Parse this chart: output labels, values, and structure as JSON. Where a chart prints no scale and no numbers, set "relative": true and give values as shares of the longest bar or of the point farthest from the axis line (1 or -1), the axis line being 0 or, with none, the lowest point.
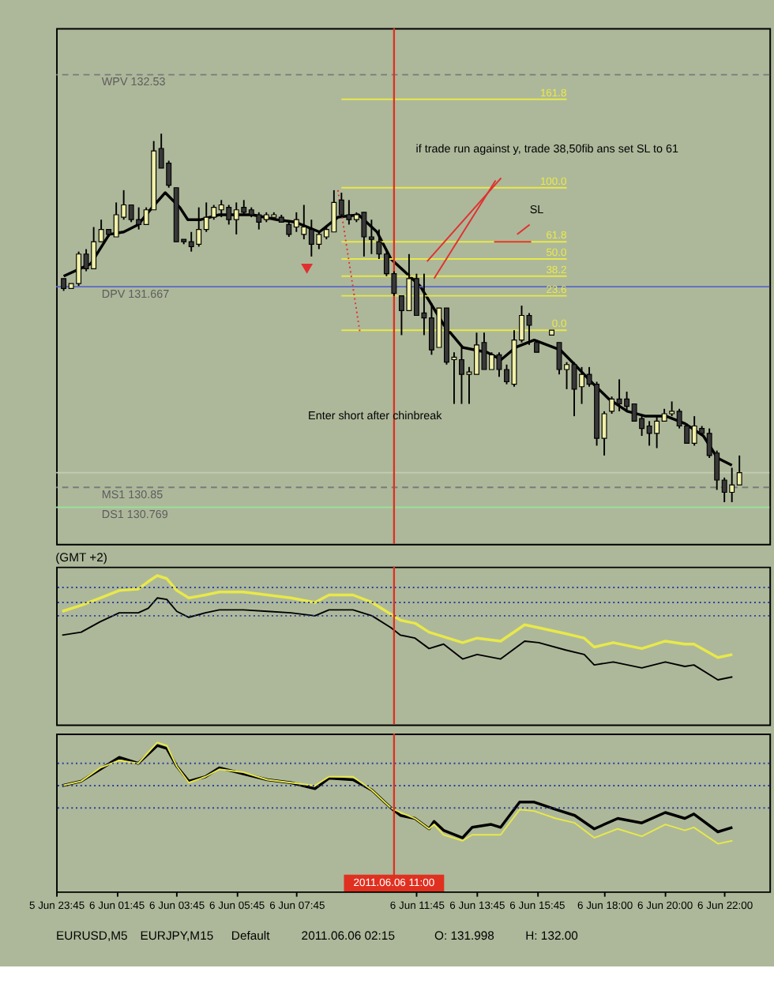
{
  "chart_data": [
    {
      "type": "candlestick",
      "xlim": [
        "2011-06-05T23:45",
        "2011-06-06T23:30"
      ],
      "ylim": [
        130.62,
        132.72
      ],
      "tick_labels": false,
      "grid": false,
      "x": [
        "2011-06-06T00:00",
        "2011-06-06T00:15",
        "2011-06-06T00:30",
        "2011-06-06T00:45",
        "2011-06-06T01:00",
        "2011-06-06T01:15",
        "2011-06-06T01:30",
        "2011-06-06T01:45",
        "2011-06-06T02:00",
        "2011-06-06T02:15",
        "2011-06-06T02:30",
        "2011-06-06T02:45",
        "2011-06-06T03:00",
        "2011-06-06T03:15",
        "2011-06-06T03:30",
        "2011-06-06T03:45",
        "2011-06-06T04:00",
        "2011-06-06T04:15",
        "2011-06-06T04:30",
        "2011-06-06T04:45",
        "2011-06-06T05:00",
        "2011-06-06T05:15",
        "2011-06-06T05:30",
        "2011-06-06T05:45",
        "2011-06-06T06:00",
        "2011-06-06T06:15",
        "2011-06-06T06:30",
        "2011-06-06T06:45",
        "2011-06-06T07:00",
        "2011-06-06T07:15",
        "2011-06-06T07:30",
        "2011-06-06T07:45",
        "2011-06-06T08:00",
        "2011-06-06T08:15",
        "2011-06-06T08:30",
        "2011-06-06T08:45",
        "2011-06-06T09:00",
        "2011-06-06T09:15",
        "2011-06-06T09:30",
        "2011-06-06T09:45",
        "2011-06-06T10:00",
        "2011-06-06T10:15",
        "2011-06-06T10:30",
        "2011-06-06T10:45",
        "2011-06-06T11:00",
        "2011-06-06T11:15",
        "2011-06-06T11:30",
        "2011-06-06T11:45",
        "2011-06-06T12:00",
        "2011-06-06T12:15",
        "2011-06-06T12:30",
        "2011-06-06T12:45",
        "2011-06-06T13:00",
        "2011-06-06T13:15",
        "2011-06-06T13:30",
        "2011-06-06T13:45",
        "2011-06-06T14:00",
        "2011-06-06T14:15",
        "2011-06-06T14:30",
        "2011-06-06T14:45",
        "2011-06-06T15:00",
        "2011-06-06T15:15",
        "2011-06-06T15:30",
        "2011-06-06T15:45",
        "2011-06-06T16:15",
        "2011-06-06T16:30",
        "2011-06-06T16:45",
        "2011-06-06T17:00",
        "2011-06-06T17:15",
        "2011-06-06T17:30",
        "2011-06-06T17:45",
        "2011-06-06T18:00",
        "2011-06-06T18:15",
        "2011-06-06T18:30",
        "2011-06-06T18:45",
        "2011-06-06T19:00",
        "2011-06-06T19:15",
        "2011-06-06T19:30",
        "2011-06-06T19:45",
        "2011-06-06T20:00",
        "2011-06-06T20:15",
        "2011-06-06T20:30",
        "2011-06-06T20:45",
        "2011-06-06T21:00",
        "2011-06-06T21:15",
        "2011-06-06T21:30",
        "2011-06-06T21:45",
        "2011-06-06T22:00",
        "2011-06-06T22:15",
        "2011-06-06T22:30"
      ],
      "ohlc": [
        [
          131.7,
          131.7,
          131.65,
          131.66
        ],
        [
          131.66,
          131.68,
          131.66,
          131.68
        ],
        [
          131.68,
          131.81,
          131.67,
          131.8
        ],
        [
          131.8,
          131.82,
          131.73,
          131.74
        ],
        [
          131.74,
          131.91,
          131.74,
          131.85
        ],
        [
          131.85,
          131.94,
          131.85,
          131.9
        ],
        [
          131.9,
          131.9,
          131.87,
          131.88
        ],
        [
          131.87,
          132.01,
          131.87,
          131.96
        ],
        [
          131.95,
          132.06,
          131.94,
          132.0
        ],
        [
          132.0,
          132.0,
          131.93,
          131.94
        ],
        [
          131.94,
          131.99,
          131.9,
          131.92
        ],
        [
          131.92,
          131.99,
          131.92,
          131.98
        ],
        [
          131.98,
          132.26,
          131.98,
          132.22
        ],
        [
          132.23,
          132.29,
          132.15,
          132.15
        ],
        [
          132.17,
          132.18,
          132.07,
          132.08
        ],
        [
          132.07,
          132.07,
          131.85,
          131.85
        ],
        [
          131.86,
          131.86,
          131.84,
          131.85
        ],
        [
          131.85,
          131.89,
          131.81,
          131.83
        ],
        [
          131.84,
          131.99,
          131.83,
          131.9
        ],
        [
          131.9,
          132.01,
          131.89,
          131.95
        ],
        [
          131.95,
          132.0,
          131.94,
          131.99
        ],
        [
          131.98,
          132.02,
          131.95,
          132.0
        ],
        [
          131.99,
          132.0,
          131.92,
          131.94
        ],
        [
          131.94,
          132.01,
          131.88,
          131.98
        ],
        [
          131.99,
          132.02,
          131.96,
          131.97
        ],
        [
          131.98,
          131.99,
          131.95,
          131.96
        ],
        [
          131.96,
          131.97,
          131.9,
          131.93
        ],
        [
          131.94,
          131.97,
          131.93,
          131.96
        ],
        [
          131.95,
          131.97,
          131.95,
          131.96
        ],
        [
          131.95,
          131.96,
          131.93,
          131.93
        ],
        [
          131.92,
          131.93,
          131.87,
          131.88
        ],
        [
          131.91,
          131.97,
          131.89,
          131.94
        ],
        [
          131.88,
          132.0,
          131.86,
          131.91
        ],
        [
          131.9,
          131.94,
          131.79,
          131.84
        ],
        [
          131.84,
          131.89,
          131.82,
          131.88
        ],
        [
          131.87,
          131.91,
          131.86,
          131.9
        ],
        [
          131.89,
          132.06,
          131.89,
          132.01
        ],
        [
          132.02,
          132.05,
          131.95,
          131.96
        ],
        [
          131.96,
          132.02,
          131.92,
          131.94
        ],
        [
          131.94,
          131.97,
          131.93,
          131.96
        ],
        [
          131.97,
          131.97,
          131.79,
          131.87
        ],
        [
          131.87,
          131.94,
          131.8,
          131.86
        ],
        [
          131.85,
          131.9,
          131.78,
          131.8
        ],
        [
          131.8,
          131.81,
          131.71,
          131.72
        ],
        [
          131.72,
          131.73,
          131.63,
          131.64
        ],
        [
          131.63,
          131.63,
          131.47,
          131.57
        ],
        [
          131.57,
          131.8,
          131.57,
          131.7
        ],
        [
          131.7,
          131.72,
          131.55,
          131.55
        ],
        [
          131.56,
          131.72,
          131.47,
          131.54
        ],
        [
          131.54,
          131.6,
          131.39,
          131.41
        ],
        [
          131.42,
          131.58,
          131.42,
          131.58
        ],
        [
          131.58,
          131.58,
          131.35,
          131.36
        ],
        [
          131.37,
          131.4,
          131.19,
          131.38
        ],
        [
          131.37,
          131.42,
          131.19,
          131.31
        ],
        [
          131.31,
          131.34,
          131.19,
          131.32
        ],
        [
          131.31,
          131.48,
          131.31,
          131.43
        ],
        [
          131.44,
          131.48,
          131.33,
          131.33
        ],
        [
          131.33,
          131.4,
          131.33,
          131.39
        ],
        [
          131.39,
          131.4,
          131.3,
          131.33
        ],
        [
          131.33,
          131.35,
          131.27,
          131.28
        ],
        [
          131.27,
          131.49,
          131.26,
          131.45
        ],
        [
          131.45,
          131.59,
          131.44,
          131.55
        ],
        [
          131.55,
          131.56,
          131.43,
          131.51
        ],
        [
          131.44,
          131.45,
          131.4,
          131.4
        ],
        [
          131.47,
          131.49,
          131.47,
          131.49
        ],
        [
          131.44,
          131.44,
          131.31,
          131.33
        ],
        [
          131.33,
          131.36,
          131.25,
          131.35
        ],
        [
          131.35,
          131.36,
          131.14,
          131.25
        ],
        [
          131.26,
          131.34,
          131.19,
          131.31
        ],
        [
          131.31,
          131.34,
          131.26,
          131.27
        ],
        [
          131.27,
          131.28,
          131.02,
          131.05
        ],
        [
          131.05,
          131.16,
          130.98,
          131.15
        ],
        [
          131.16,
          131.22,
          131.15,
          131.21
        ],
        [
          131.21,
          131.29,
          131.16,
          131.19
        ],
        [
          131.21,
          131.24,
          131.16,
          131.18
        ],
        [
          131.19,
          131.19,
          131.12,
          131.12
        ],
        [
          131.13,
          131.14,
          131.06,
          131.09
        ],
        [
          131.1,
          131.12,
          131.02,
          131.07
        ],
        [
          131.07,
          131.14,
          131.01,
          131.12
        ],
        [
          131.12,
          131.17,
          131.12,
          131.15
        ],
        [
          131.15,
          131.2,
          131.14,
          131.16
        ],
        [
          131.16,
          131.17,
          131.09,
          131.1
        ],
        [
          131.1,
          131.11,
          131.03,
          131.03
        ],
        [
          131.03,
          131.14,
          131.02,
          131.1
        ],
        [
          131.09,
          131.1,
          131.06,
          131.07
        ],
        [
          131.07,
          131.09,
          130.97,
          130.98
        ],
        [
          130.99,
          131.0,
          130.84,
          130.88
        ],
        [
          130.88,
          130.89,
          130.79,
          130.83
        ],
        [
          130.83,
          130.93,
          130.79,
          130.86
        ],
        [
          130.86,
          130.98,
          130.86,
          130.91
        ]
      ],
      "colors": [
        "#383838",
        "#f0f0a8",
        "#f0f0a8",
        "#383838",
        "#f0f0a8",
        "#f0f0a8",
        "#383838",
        "#f0f0a8",
        "#f0f0a8",
        "#383838",
        "#383838",
        "#f0f0a8",
        "#f0f0a8",
        "#383838",
        "#383838",
        "#383838",
        "#383838",
        "#383838",
        "#f0f0a8",
        "#f0f0a8",
        "#f0f0a8",
        "#f0f0a8",
        "#383838",
        "#f0f0a8",
        "#383838",
        "#383838",
        "#383838",
        "#f0f0a8",
        "#f0f0a8",
        "#383838",
        "#383838",
        "#f0f0a8",
        "#f0f0a8",
        "#383838",
        "#f0f0a8",
        "#f0f0a8",
        "#f0f0a8",
        "#383838",
        "#383838",
        "#f0f0a8",
        "#383838",
        "#383838",
        "#383838",
        "#383838",
        "#383838",
        "#383838",
        "#f0f0a8",
        "#383838",
        "#383838",
        "#383838",
        "#f0f0a8",
        "#383838",
        "#f0f0a8",
        "#383838",
        "#f0f0a8",
        "#f0f0a8",
        "#383838",
        "#f0f0a8",
        "#383838",
        "#383838",
        "#f0f0a8",
        "#f0f0a8",
        "#383838",
        "#383838",
        "#f0f0a8",
        "#383838",
        "#f0f0a8",
        "#383838",
        "#f0f0a8",
        "#383838",
        "#383838",
        "#f0f0a8",
        "#f0f0a8",
        "#383838",
        "#383838",
        "#383838",
        "#383838",
        "#383838",
        "#f0f0a8",
        "#f0f0a8",
        "#f0f0a8",
        "#383838",
        "#383838",
        "#f0f0a8",
        "#383838",
        "#383838",
        "#383838",
        "#383838",
        "#f0f0a8",
        "#f0f0a8"
      ],
      "series": [
        {
          "type": "line",
          "color": "#000000",
          "x": [
            "2011-06-06T00:00",
            "2011-06-06T00:54",
            "2011-06-06T01:31",
            "2011-06-06T02:00",
            "2011-06-06T02:29",
            "2011-06-06T02:57",
            "2011-06-06T03:23",
            "2011-06-06T03:52",
            "2011-06-06T04:08",
            "2011-06-06T04:34",
            "2011-06-06T05:11",
            "2011-06-06T06:17",
            "2011-06-06T07:06",
            "2011-06-06T07:43",
            "2011-06-06T08:31",
            "2011-06-06T09:08",
            "2011-06-06T09:49",
            "2011-06-06T10:26",
            "2011-06-06T10:54",
            "2011-06-06T11:52",
            "2011-06-06T12:40",
            "2011-06-06T13:17",
            "2011-06-06T14:06",
            "2011-06-06T14:34",
            "2011-06-06T15:03",
            "2011-06-06T15:40",
            "2011-06-06T16:32",
            "2011-06-06T17:01",
            "2011-06-06T17:29",
            "2011-06-06T18:09",
            "2011-06-06T18:46",
            "2011-06-06T19:23",
            "2011-06-06T20:04",
            "2011-06-06T20:41",
            "2011-06-06T21:18",
            "2011-06-06T21:46",
            "2011-06-06T22:15"
          ],
          "values": [
            131.71,
            131.76,
            131.88,
            131.89,
            131.92,
            131.99,
            132.05,
            131.99,
            131.94,
            131.94,
            131.96,
            131.96,
            131.94,
            131.93,
            131.89,
            131.95,
            131.96,
            131.89,
            131.78,
            131.67,
            131.51,
            131.42,
            131.4,
            131.37,
            131.42,
            131.45,
            131.41,
            131.35,
            131.29,
            131.21,
            131.16,
            131.14,
            131.14,
            131.11,
            131.06,
            130.97,
            130.94
          ]
        },
        {
          "type": "line",
          "color": "#e8e84a",
          "x": [
            "2011-06-06T09:15",
            "2011-06-06T16:45"
          ],
          "values": [
            132.43,
            132.43
          ]
        },
        {
          "type": "line",
          "color": "#e8e84a",
          "x": [
            "2011-06-06T09:15",
            "2011-06-06T16:45"
          ],
          "values": [
            132.07,
            132.07
          ]
        },
        {
          "type": "line",
          "color": "#e8e84a",
          "x": [
            "2011-06-06T09:15",
            "2011-06-06T16:45"
          ],
          "values": [
            131.85,
            131.85
          ]
        },
        {
          "type": "line",
          "color": "#e8e84a",
          "x": [
            "2011-06-06T09:15",
            "2011-06-06T16:45"
          ],
          "values": [
            131.78,
            131.78
          ]
        },
        {
          "type": "line",
          "color": "#e8e84a",
          "x": [
            "2011-06-06T09:15",
            "2011-06-06T16:45"
          ],
          "values": [
            131.71,
            131.71
          ]
        },
        {
          "type": "line",
          "color": "#e8e84a",
          "x": [
            "2011-06-06T09:15",
            "2011-06-06T16:45"
          ],
          "values": [
            131.63,
            131.63
          ]
        },
        {
          "type": "line",
          "color": "#e8e84a",
          "x": [
            "2011-06-06T09:15",
            "2011-06-06T16:45"
          ],
          "values": [
            131.49,
            131.49
          ]
        },
        {
          "type": "line",
          "color": "#e03030",
          "line_style": "dotted",
          "x": [
            "2011-06-06T09:08",
            "2011-06-06T09:52"
          ],
          "values": [
            132.06,
            131.48
          ]
        },
        {
          "type": "line",
          "color": "#e03030",
          "x": [
            "2011-06-06T14:20",
            "2011-06-06T15:34"
          ],
          "values": [
            131.85,
            131.85
          ]
        },
        {
          "type": "line",
          "color": "#e03030",
          "x": [
            "2011-06-06T12:06",
            "2011-06-06T14:34"
          ],
          "values": [
            131.77,
            132.11
          ]
        },
        {
          "type": "line",
          "color": "#e03030",
          "x": [
            "2011-06-06T12:20",
            "2011-06-06T14:23"
          ],
          "values": [
            131.7,
            132.1
          ]
        },
        {
          "type": "line",
          "color": "#e03030",
          "x": [
            "2011-06-06T15:06",
            "2011-06-06T15:31"
          ],
          "values": [
            131.88,
            131.92
          ]
        },
        {
          "type": "scatter",
          "color": "#e03030",
          "marker": "triangle",
          "x": [
            "2011-06-06T08:06"
          ],
          "values": [
            131.74
          ]
        }
      ],
      "ref_lines": [
        {
          "axis": "y",
          "value": 132.53,
          "label": "WPV  132.53",
          "color": "#7a7a7a",
          "line_style": "dashed"
        },
        {
          "axis": "y",
          "value": 131.667,
          "label": "DPV  131.667",
          "color": "#5a68c8",
          "line_style": "solid"
        },
        {
          "axis": "y",
          "value": 130.91,
          "color": "#c4ccb4",
          "line_style": "solid"
        },
        {
          "axis": "y",
          "value": 130.85,
          "label": "MS1  130.85",
          "color": "#7a7a7a",
          "line_style": "dashed"
        },
        {
          "axis": "y",
          "value": 130.769,
          "label": "DS1  130.769",
          "color": "#98e098",
          "line_style": "solid"
        },
        {
          "axis": "x",
          "value": "2011-06-06T11:00",
          "color": "#e03020",
          "line_style": "solid"
        }
      ],
      "annotations": [
        {
          "text": "161.8",
          "x": "2011-06-06T16:45",
          "y": 132.43
        },
        {
          "text": "100.0",
          "x": "2011-06-06T16:45",
          "y": 132.07
        },
        {
          "text": "61.8",
          "x": "2011-06-06T16:45",
          "y": 131.85
        },
        {
          "text": "50.0",
          "x": "2011-06-06T16:45",
          "y": 131.78
        },
        {
          "text": "38.2",
          "x": "2011-06-06T16:45",
          "y": 131.71
        },
        {
          "text": "23.6",
          "x": "2011-06-06T16:45",
          "y": 131.63
        },
        {
          "text": "0.0",
          "x": "2011-06-06T16:45",
          "y": 131.49
        },
        "if trade run against y, trade 38,50fib ans set SL to 61",
        "SL",
        "Enter short after chinbreak"
      ]
    },
    {
      "type": "line",
      "title": "(GMT +2)",
      "relative": true,
      "xlim": [
        "2011-06-05T23:45",
        "2011-06-06T23:30"
      ],
      "tick_labels": false,
      "grid": false,
      "series": [
        {
          "color": "#e8e84a",
          "x": [
            "2011-06-05T23:57",
            "2011-06-06T00:35",
            "2011-06-06T01:13",
            "2011-06-06T01:51",
            "2011-06-06T02:29",
            "2011-06-06T02:49",
            "2011-06-06T03:07",
            "2011-06-06T03:26",
            "2011-06-06T03:46",
            "2011-06-06T04:10",
            "2011-06-06T04:43",
            "2011-06-06T05:11",
            "2011-06-06T05:59",
            "2011-06-06T06:47",
            "2011-06-06T07:34",
            "2011-06-06T08:22",
            "2011-06-06T08:50",
            "2011-06-06T09:38",
            "2011-06-06T10:16",
            "2011-06-06T10:54",
            "2011-06-06T11:13",
            "2011-06-06T11:42",
            "2011-06-06T12:10",
            "2011-06-06T12:39",
            "2011-06-06T13:17",
            "2011-06-06T13:46",
            "2011-06-06T14:33",
            "2011-06-06T15:21",
            "2011-06-06T15:49",
            "2011-06-06T16:43",
            "2011-06-06T17:20",
            "2011-06-06T17:40",
            "2011-06-06T18:18",
            "2011-06-06T19:15",
            "2011-06-06T20:02",
            "2011-06-06T20:41",
            "2011-06-06T20:59",
            "2011-06-06T21:47",
            "2011-06-06T22:16"
          ],
          "values": [
            0.76,
            0.8,
            0.85,
            0.9,
            0.91,
            0.96,
            1.0,
            0.98,
            0.9,
            0.85,
            0.87,
            0.89,
            0.89,
            0.87,
            0.85,
            0.82,
            0.87,
            0.87,
            0.82,
            0.74,
            0.7,
            0.68,
            0.62,
            0.59,
            0.55,
            0.58,
            0.56,
            0.67,
            0.65,
            0.61,
            0.58,
            0.52,
            0.55,
            0.51,
            0.56,
            0.54,
            0.54,
            0.45,
            0.47
          ]
        },
        {
          "color": "#000000",
          "x": [
            "2011-06-05T23:57",
            "2011-06-06T00:35",
            "2011-06-06T01:13",
            "2011-06-06T01:51",
            "2011-06-06T02:29",
            "2011-06-06T02:49",
            "2011-06-06T03:07",
            "2011-06-06T03:26",
            "2011-06-06T03:46",
            "2011-06-06T04:10",
            "2011-06-06T04:43",
            "2011-06-06T05:11",
            "2011-06-06T05:59",
            "2011-06-06T06:47",
            "2011-06-06T07:34",
            "2011-06-06T08:22",
            "2011-06-06T08:50",
            "2011-06-06T09:38",
            "2011-06-06T10:16",
            "2011-06-06T10:54",
            "2011-06-06T11:13",
            "2011-06-06T11:42",
            "2011-06-06T12:10",
            "2011-06-06T12:39",
            "2011-06-06T13:17",
            "2011-06-06T13:46",
            "2011-06-06T14:33",
            "2011-06-06T15:21",
            "2011-06-06T15:49",
            "2011-06-06T16:43",
            "2011-06-06T17:20",
            "2011-06-06T17:40",
            "2011-06-06T18:18",
            "2011-06-06T19:15",
            "2011-06-06T20:02",
            "2011-06-06T20:41",
            "2011-06-06T20:59",
            "2011-06-06T21:47",
            "2011-06-06T22:16"
          ],
          "values": [
            0.6,
            0.62,
            0.69,
            0.75,
            0.75,
            0.78,
            0.85,
            0.84,
            0.76,
            0.72,
            0.75,
            0.77,
            0.77,
            0.76,
            0.75,
            0.73,
            0.77,
            0.77,
            0.73,
            0.65,
            0.6,
            0.58,
            0.51,
            0.54,
            0.44,
            0.47,
            0.44,
            0.56,
            0.55,
            0.5,
            0.47,
            0.4,
            0.42,
            0.38,
            0.42,
            0.39,
            0.4,
            0.3,
            0.32
          ]
        }
      ],
      "ref_lines": [
        {
          "axis": "y",
          "value": 0.92,
          "color": "#2a3aa0",
          "line_style": "dotted"
        },
        {
          "axis": "y",
          "value": 0.82,
          "color": "#2a3aa0",
          "line_style": "dotted"
        },
        {
          "axis": "y",
          "value": 0.73,
          "color": "#2a3aa0",
          "line_style": "dotted"
        },
        {
          "axis": "x",
          "value": "2011-06-06T11:00",
          "color": "#e03020",
          "line_style": "solid"
        }
      ]
    },
    {
      "type": "line",
      "relative": true,
      "xlim": [
        "2011-06-05T23:45",
        "2011-06-06T23:30"
      ],
      "tick_labels": "x",
      "grid": false,
      "xticks": [
        {
          "value": "2011-06-05T23:45",
          "label": "5 Jun 23:45"
        },
        {
          "value": "2011-06-06T01:45",
          "label": "6 Jun 01:45"
        },
        {
          "value": "2011-06-06T03:45",
          "label": "6 Jun 03:45"
        },
        {
          "value": "2011-06-06T05:45",
          "label": "6 Jun 05:45"
        },
        {
          "value": "2011-06-06T07:45",
          "label": "6 Jun 07:45"
        },
        {
          "value": "2011-06-06T11:45",
          "label": "6 Jun 11:45"
        },
        {
          "value": "2011-06-06T13:45",
          "label": "6 Jun 13:45"
        },
        {
          "value": "2011-06-06T15:45",
          "label": "6 Jun 15:45"
        },
        {
          "value": "2011-06-06T18:00",
          "label": "6 Jun 18:00"
        },
        {
          "value": "2011-06-06T20:00",
          "label": "6 Jun 20:00"
        },
        {
          "value": "2011-06-06T22:00",
          "label": "6 Jun 22:00"
        }
      ],
      "series": [
        {
          "color": "#000000",
          "x": [
            "2011-06-05T23:57",
            "2011-06-06T00:35",
            "2011-06-06T01:13",
            "2011-06-06T01:51",
            "2011-06-06T02:29",
            "2011-06-06T03:07",
            "2011-06-06T03:26",
            "2011-06-06T03:46",
            "2011-06-06T04:10",
            "2011-06-06T04:43",
            "2011-06-06T05:11",
            "2011-06-06T05:59",
            "2011-06-06T06:47",
            "2011-06-06T07:34",
            "2011-06-06T08:22",
            "2011-06-06T08:50",
            "2011-06-06T09:38",
            "2011-06-06T10:16",
            "2011-06-06T10:54",
            "2011-06-06T11:13",
            "2011-06-06T11:42",
            "2011-06-06T12:10",
            "2011-06-06T12:20",
            "2011-06-06T12:39",
            "2011-06-06T13:17",
            "2011-06-06T13:36",
            "2011-06-06T14:14",
            "2011-06-06T14:33",
            "2011-06-06T15:11",
            "2011-06-06T15:40",
            "2011-06-06T16:23",
            "2011-06-06T17:01",
            "2011-06-06T17:40",
            "2011-06-06T18:27",
            "2011-06-06T19:15",
            "2011-06-06T20:02",
            "2011-06-06T20:41",
            "2011-06-06T20:59",
            "2011-06-06T21:47",
            "2011-06-06T22:16"
          ],
          "values": [
            0.71,
            0.74,
            0.82,
            0.9,
            0.86,
            0.98,
            0.96,
            0.84,
            0.74,
            0.77,
            0.83,
            0.79,
            0.75,
            0.73,
            0.69,
            0.76,
            0.75,
            0.68,
            0.56,
            0.51,
            0.49,
            0.42,
            0.47,
            0.41,
            0.36,
            0.43,
            0.45,
            0.43,
            0.6,
            0.6,
            0.55,
            0.51,
            0.42,
            0.49,
            0.46,
            0.53,
            0.49,
            0.52,
            0.4,
            0.43
          ]
        },
        {
          "color": "#e8e84a",
          "x": [
            "2011-06-05T23:57",
            "2011-06-06T00:35",
            "2011-06-06T01:13",
            "2011-06-06T01:51",
            "2011-06-06T02:29",
            "2011-06-06T03:07",
            "2011-06-06T03:26",
            "2011-06-06T03:46",
            "2011-06-06T04:10",
            "2011-06-06T04:43",
            "2011-06-06T05:11",
            "2011-06-06T05:59",
            "2011-06-06T06:47",
            "2011-06-06T07:34",
            "2011-06-06T08:22",
            "2011-06-06T08:50",
            "2011-06-06T09:38",
            "2011-06-06T10:16",
            "2011-06-06T10:54",
            "2011-06-06T11:13",
            "2011-06-06T11:42",
            "2011-06-06T12:10",
            "2011-06-06T12:20",
            "2011-06-06T12:39",
            "2011-06-06T13:17",
            "2011-06-06T13:36",
            "2011-06-06T14:14",
            "2011-06-06T14:33",
            "2011-06-06T15:11",
            "2011-06-06T15:40",
            "2011-06-06T16:23",
            "2011-06-06T17:01",
            "2011-06-06T17:40",
            "2011-06-06T18:27",
            "2011-06-06T19:15",
            "2011-06-06T20:02",
            "2011-06-06T20:41",
            "2011-06-06T20:59",
            "2011-06-06T21:47",
            "2011-06-06T22:16"
          ],
          "values": [
            0.71,
            0.74,
            0.83,
            0.88,
            0.86,
            1.0,
            0.98,
            0.84,
            0.73,
            0.77,
            0.82,
            0.8,
            0.75,
            0.73,
            0.71,
            0.77,
            0.77,
            0.68,
            0.56,
            0.53,
            0.49,
            0.42,
            0.45,
            0.38,
            0.34,
            0.38,
            0.38,
            0.38,
            0.55,
            0.54,
            0.49,
            0.46,
            0.36,
            0.42,
            0.37,
            0.45,
            0.41,
            0.43,
            0.32,
            0.34
          ]
        }
      ],
      "ref_lines": [
        {
          "axis": "y",
          "value": 0.86,
          "color": "#2a3aa0",
          "line_style": "dotted"
        },
        {
          "axis": "y",
          "value": 0.71,
          "color": "#2a3aa0",
          "line_style": "dotted"
        },
        {
          "axis": "y",
          "value": 0.56,
          "color": "#2a3aa0",
          "line_style": "dotted"
        },
        {
          "axis": "x",
          "value": "2011-06-06T11:00",
          "label": "2011.06.06 11:00",
          "color": "#e03020",
          "line_style": "solid"
        }
      ],
      "annotations": [
        "EURUSD,M5",
        "EURJPY,M15",
        "Default",
        "2011.06.06 02:15",
        "O: 131.998",
        "H: 132.00"
      ]
    }
  ]
}
